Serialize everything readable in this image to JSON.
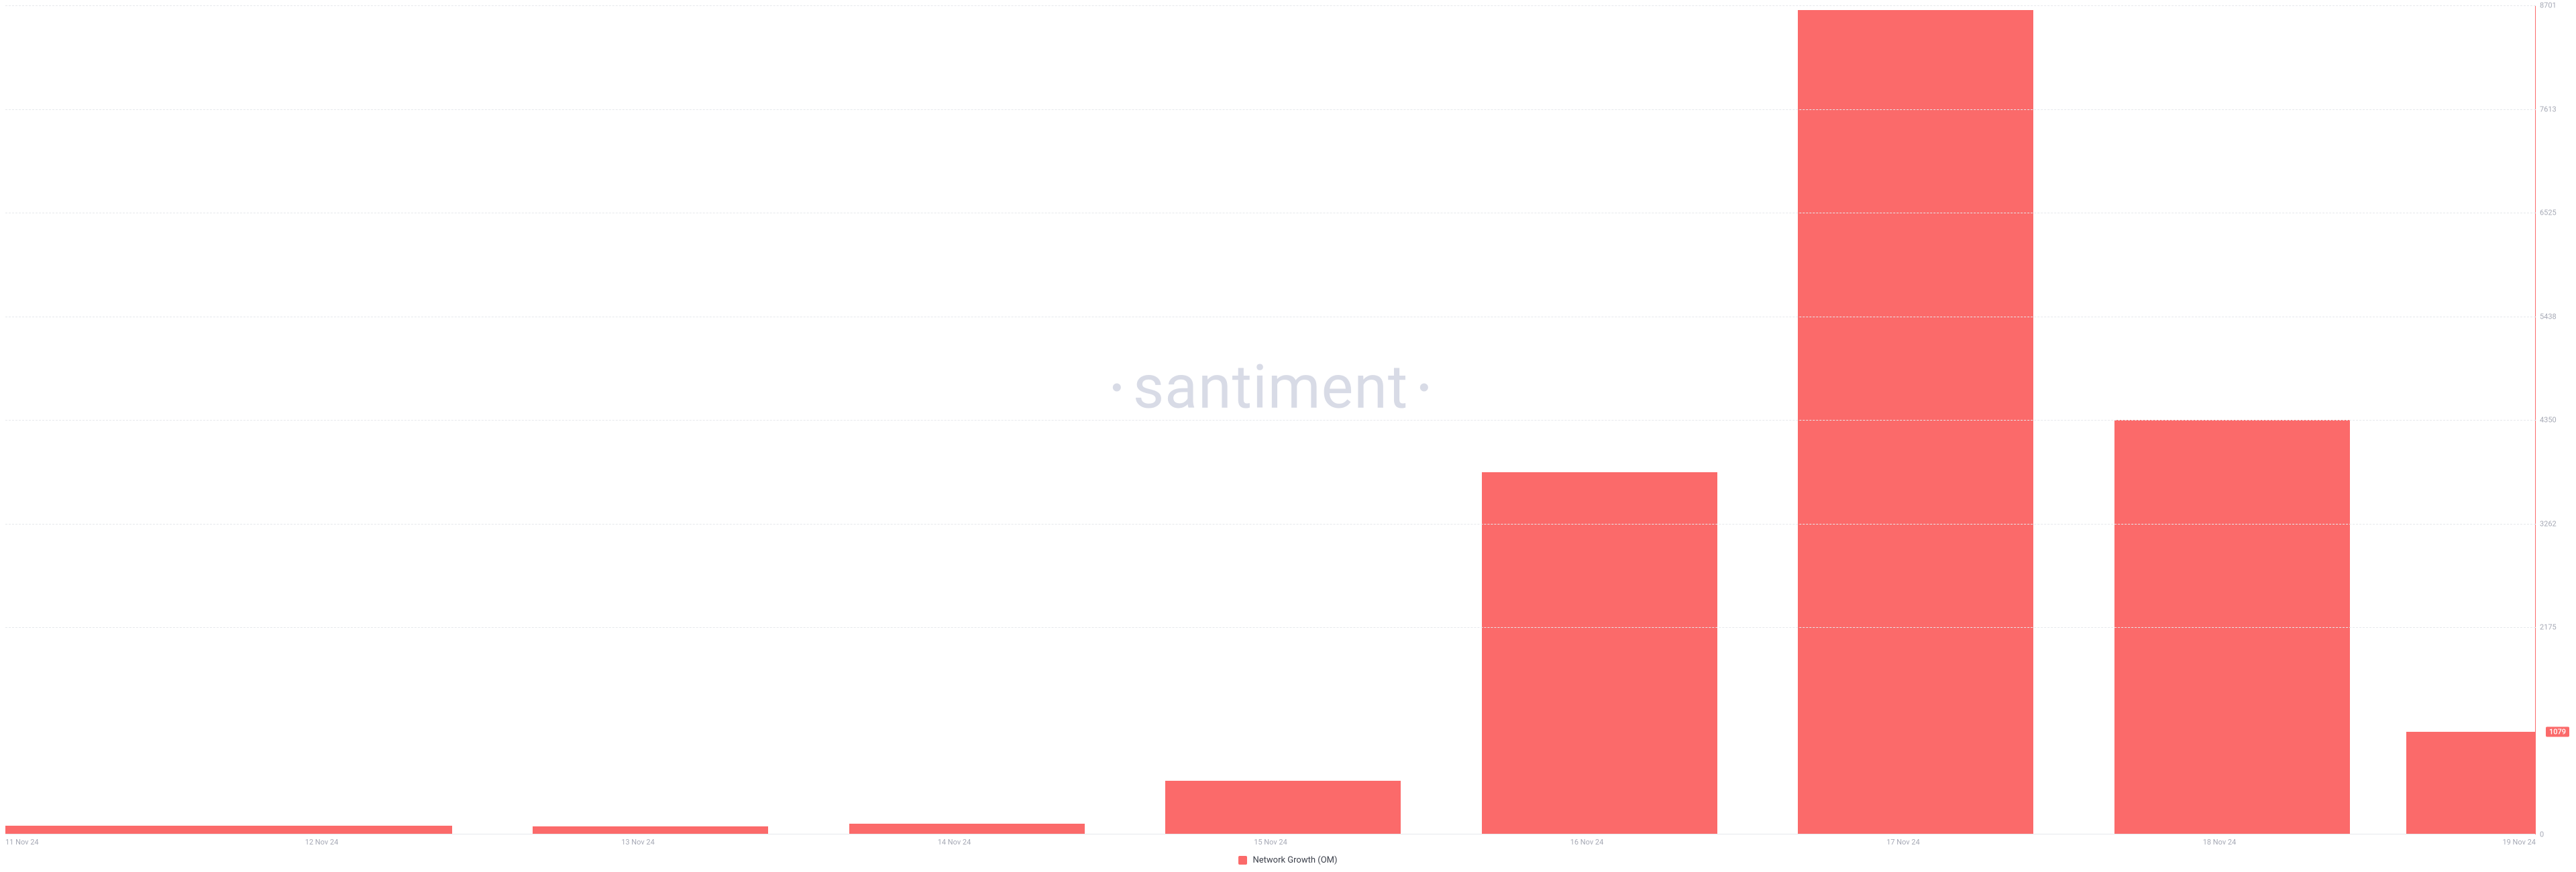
{
  "chart": {
    "type": "bar",
    "watermark_text": "santiment",
    "watermark_color": "#d8dbe6",
    "background_color": "#ffffff",
    "grid_color": "#e6e8ec",
    "axis_label_color": "#a6a9b5",
    "axis_font_size": 11,
    "y_axis_line_color": "#fb6a6a",
    "bar_color": "#fb6a6a",
    "bar_width_pct": 9.3,
    "y_min": 0,
    "y_max": 8701,
    "y_ticks": [
      0,
      2175,
      3262,
      4350,
      5438,
      6525,
      7613,
      8701
    ],
    "y_tick_labels": [
      "0",
      "2175",
      "3262",
      "4350",
      "5438",
      "6525",
      "7613",
      "8701"
    ],
    "current_value": 1079,
    "current_label": "1079",
    "current_badge_bg": "#fb6a6a",
    "current_badge_fg": "#ffffff",
    "x_labels": [
      "11 Nov 24",
      "12 Nov 24",
      "13 Nov 24",
      "14 Nov 24",
      "15 Nov 24",
      "16 Nov 24",
      "17 Nov 24",
      "18 Nov 24",
      "19 Nov 24"
    ],
    "values": [
      90,
      95,
      85,
      110,
      560,
      3800,
      8650,
      4350,
      1079
    ],
    "legend": {
      "swatch_color": "#fb6a6a",
      "label": "Network Growth (OM)",
      "label_color": "#3b3f4a",
      "label_font_size": 13
    }
  }
}
